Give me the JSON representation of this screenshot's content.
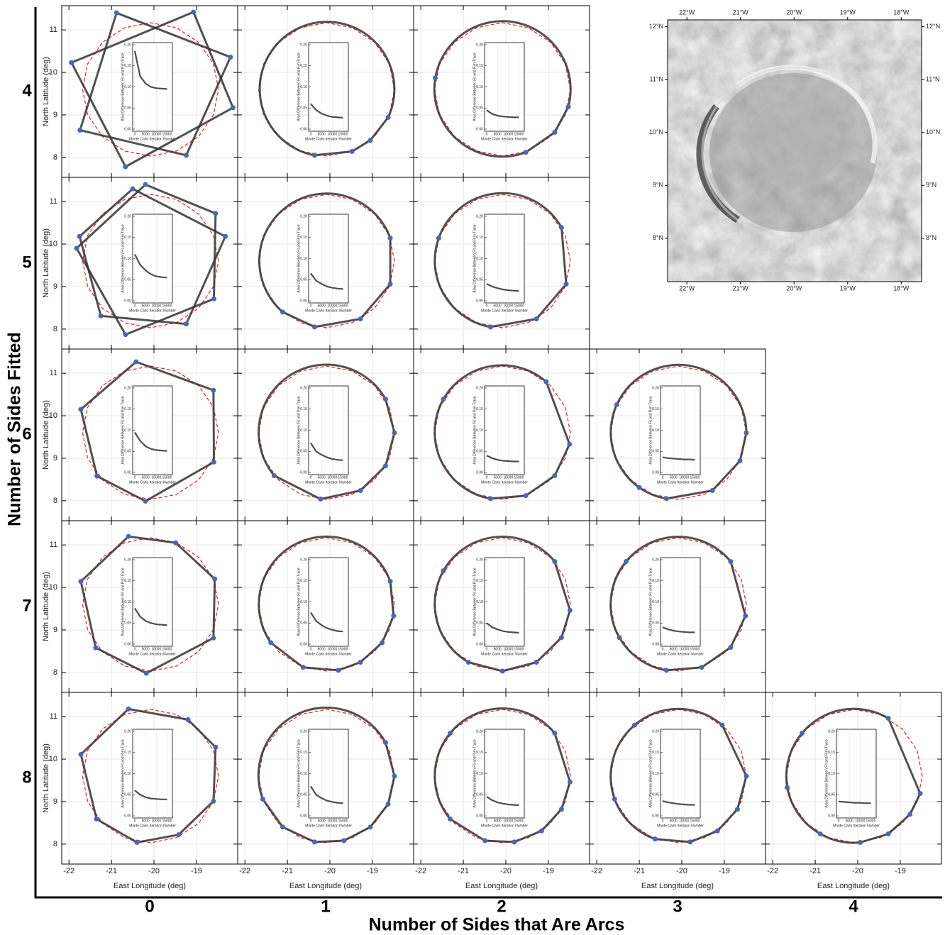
{
  "chart_data": {
    "type": "panel-grid",
    "row_title": "Number of Sides Fitted",
    "col_title": "Number of Sides that Are Arcs",
    "sides_fitted": [
      4,
      5,
      6,
      7,
      8
    ],
    "arc_counts": [
      0,
      1,
      2,
      3,
      4
    ],
    "xlabel": "East Longitude (deg)",
    "ylabel": "North Latitude (deg)",
    "xlim": [
      -22.17,
      -18.03
    ],
    "ylim": [
      7.53,
      11.57
    ],
    "xticks": [
      -22,
      -21,
      -20,
      -19
    ],
    "yticks": [
      8,
      9,
      10,
      11
    ],
    "grid": true,
    "rim_color": "#e02020",
    "fit_color": "#333333",
    "vertex_color": "#4a66b8",
    "rim_trace": [
      [
        -18.48,
        9.6
      ],
      [
        -18.6,
        10.2
      ],
      [
        -18.95,
        10.71
      ],
      [
        -19.47,
        11.05
      ],
      [
        -20.08,
        11.17
      ],
      [
        -20.69,
        11.05
      ],
      [
        -21.21,
        10.71
      ],
      [
        -21.56,
        10.2
      ],
      [
        -21.68,
        9.6
      ],
      [
        -21.56,
        9.0
      ],
      [
        -21.21,
        8.49
      ],
      [
        -20.69,
        8.15
      ],
      [
        -20.08,
        8.03
      ],
      [
        -19.47,
        8.15
      ],
      [
        -18.95,
        8.49
      ],
      [
        -18.6,
        9.0
      ]
    ],
    "inset": {
      "xlabel": "Monte Carlo Iteration Number",
      "ylabel": "Area Difference Between Fit and Rim Trace",
      "xlim": [
        -1000,
        17500
      ],
      "ylim": [
        -0.005,
        0.205
      ],
      "xticks": [
        0,
        5000,
        10000,
        15000
      ],
      "yticks": [
        {
          "value": 0,
          "label": "0.00"
        },
        {
          "value": 0.05,
          "label": "0.05"
        },
        {
          "value": 0.1,
          "label": "0.10"
        },
        {
          "value": 0.15,
          "label": "0.15"
        },
        {
          "value": 0.2,
          "label": "0.20"
        }
      ],
      "x": [
        0,
        2500,
        5000,
        7500,
        10000,
        12500,
        15000
      ],
      "color": "#222222"
    },
    "panels": [
      {
        "sides": 4,
        "arcs": 0,
        "fits": [
          [
            [
              -20.88,
              11.4
            ],
            [
              -18.2,
              10.36
            ],
            [
              -19.24,
              8.05
            ],
            [
              -21.74,
              8.64
            ]
          ],
          [
            [
              -19.07,
              11.42
            ],
            [
              -18.14,
              9.17
            ],
            [
              -20.67,
              7.78
            ],
            [
              -21.94,
              10.23
            ]
          ]
        ],
        "convergence": [
          0.185,
          0.125,
          0.108,
          0.1,
          0.097,
          0.096,
          0.095
        ]
      },
      {
        "sides": 4,
        "arcs": 1,
        "fits": [
          [
            [
              -18.63,
              8.94
            ],
            [
              -20.36,
              8.05
            ],
            [
              -19.48,
              8.14
            ],
            [
              -19.05,
              8.4
            ]
          ]
        ],
        "convergence": [
          0.06,
          0.045,
          0.037,
          0.032,
          0.029,
          0.028,
          0.027
        ]
      },
      {
        "sides": 4,
        "arcs": 2,
        "fits": [
          [
            [
              -18.53,
              9.19
            ],
            [
              -21.66,
              9.87
            ],
            [
              -19.53,
              8.12
            ],
            [
              -18.85,
              8.59
            ]
          ]
        ],
        "convergence": [
          0.045,
          0.036,
          0.032,
          0.03,
          0.029,
          0.028,
          0.028
        ]
      },
      {
        "sides": 5,
        "arcs": 0,
        "fits": [
          [
            [
              -20.5,
              11.3
            ],
            [
              -18.32,
              10.18
            ],
            [
              -19.24,
              8.12
            ],
            [
              -21.25,
              8.31
            ],
            [
              -21.75,
              10.18
            ]
          ],
          [
            [
              -20.2,
              11.4
            ],
            [
              -18.55,
              10.72
            ],
            [
              -18.59,
              8.71
            ],
            [
              -20.67,
              7.87
            ],
            [
              -21.82,
              9.9
            ]
          ]
        ],
        "convergence": [
          0.11,
          0.085,
          0.072,
          0.063,
          0.058,
          0.056,
          0.055
        ]
      },
      {
        "sides": 5,
        "arcs": 1,
        "fits": [
          [
            [
              -18.58,
              10.14
            ],
            [
              -21.11,
              8.4
            ],
            [
              -20.36,
              8.05
            ],
            [
              -19.28,
              8.24
            ],
            [
              -18.58,
              9.06
            ]
          ]
        ],
        "convergence": [
          0.065,
          0.048,
          0.04,
          0.034,
          0.031,
          0.029,
          0.028
        ]
      },
      {
        "sides": 5,
        "arcs": 2,
        "fits": [
          [
            [
              -18.69,
              10.39
            ],
            [
              -21.58,
              10.14
            ],
            [
              -20.36,
              8.05
            ],
            [
              -19.28,
              8.24
            ],
            [
              -18.58,
              9.06
            ]
          ]
        ],
        "convergence": [
          0.04,
          0.034,
          0.03,
          0.027,
          0.025,
          0.024,
          0.023
        ]
      },
      {
        "sides": 6,
        "arcs": 0,
        "fits": [
          [
            [
              -20.42,
              11.27
            ],
            [
              -18.6,
              10.6
            ],
            [
              -18.59,
              8.91
            ],
            [
              -20.2,
              7.99
            ],
            [
              -21.34,
              8.58
            ],
            [
              -21.72,
              10.15
            ]
          ]
        ],
        "convergence": [
          0.095,
          0.075,
          0.062,
          0.056,
          0.053,
          0.052,
          0.051
        ]
      },
      {
        "sides": 6,
        "arcs": 1,
        "fits": [
          [
            [
              -18.69,
              10.39
            ],
            [
              -21.31,
              8.59
            ],
            [
              -20.22,
              8.04
            ],
            [
              -19.28,
              8.24
            ],
            [
              -18.69,
              8.82
            ],
            [
              -18.48,
              9.6
            ]
          ]
        ],
        "convergence": [
          0.07,
          0.05,
          0.042,
          0.036,
          0.032,
          0.03,
          0.029
        ]
      },
      {
        "sides": 6,
        "arcs": 2,
        "fits": [
          [
            [
              -19.05,
              10.8
            ],
            [
              -21.47,
              10.39
            ],
            [
              -20.36,
              8.05
            ],
            [
              -19.53,
              8.12
            ],
            [
              -18.85,
              8.59
            ],
            [
              -18.5,
              9.33
            ]
          ]
        ],
        "convergence": [
          0.04,
          0.034,
          0.03,
          0.028,
          0.027,
          0.026,
          0.026
        ]
      },
      {
        "sides": 6,
        "arcs": 3,
        "fits": [
          [
            [
              -18.48,
              9.6
            ],
            [
              -21.53,
              10.26
            ],
            [
              -21.0,
              8.31
            ],
            [
              -20.36,
              8.05
            ],
            [
              -19.28,
              8.24
            ],
            [
              -18.63,
              8.94
            ]
          ]
        ],
        "convergence": [
          0.036,
          0.034,
          0.033,
          0.032,
          0.031,
          0.031,
          0.03
        ]
      },
      {
        "sides": 7,
        "arcs": 0,
        "fits": [
          [
            [
              -20.6,
              11.2
            ],
            [
              -19.49,
              11.05
            ],
            [
              -18.57,
              10.2
            ],
            [
              -18.6,
              8.81
            ],
            [
              -20.18,
              7.98
            ],
            [
              -21.37,
              8.58
            ],
            [
              -21.72,
              10.14
            ]
          ]
        ],
        "convergence": [
          0.085,
          0.065,
          0.055,
          0.05,
          0.047,
          0.046,
          0.045
        ]
      },
      {
        "sides": 7,
        "arcs": 1,
        "fits": [
          [
            [
              -18.58,
              10.14
            ],
            [
              -21.39,
              8.7
            ],
            [
              -20.63,
              8.12
            ],
            [
              -19.8,
              8.05
            ],
            [
              -19.28,
              8.24
            ],
            [
              -18.77,
              8.7
            ],
            [
              -18.5,
              9.33
            ]
          ]
        ],
        "convergence": [
          0.075,
          0.055,
          0.045,
          0.038,
          0.034,
          0.031,
          0.03
        ]
      },
      {
        "sides": 7,
        "arcs": 2,
        "fits": [
          [
            [
              -18.85,
              10.61
            ],
            [
              -21.47,
              10.39
            ],
            [
              -20.88,
              8.24
            ],
            [
              -20.08,
              8.03
            ],
            [
              -19.28,
              8.24
            ],
            [
              -18.69,
              8.82
            ],
            [
              -18.49,
              9.46
            ]
          ]
        ],
        "convergence": [
          0.05,
          0.04,
          0.035,
          0.031,
          0.029,
          0.028,
          0.027
        ]
      },
      {
        "sides": 7,
        "arcs": 3,
        "fits": [
          [
            [
              -18.85,
              10.61
            ],
            [
              -21.31,
              10.61
            ],
            [
              -21.47,
              8.82
            ],
            [
              -20.36,
              8.05
            ],
            [
              -19.53,
              8.12
            ],
            [
              -18.85,
              8.59
            ],
            [
              -18.5,
              9.33
            ]
          ]
        ],
        "convergence": [
          0.04,
          0.035,
          0.032,
          0.03,
          0.029,
          0.028,
          0.028
        ]
      },
      {
        "sides": 8,
        "arcs": 0,
        "fits": [
          [
            [
              -20.6,
              11.18
            ],
            [
              -19.2,
              10.93
            ],
            [
              -18.55,
              10.28
            ],
            [
              -18.6,
              9.01
            ],
            [
              -19.42,
              8.22
            ],
            [
              -20.4,
              8.04
            ],
            [
              -21.35,
              8.59
            ],
            [
              -21.72,
              10.11
            ]
          ]
        ],
        "convergence": [
          0.06,
          0.05,
          0.044,
          0.041,
          0.04,
          0.039,
          0.039
        ]
      },
      {
        "sides": 8,
        "arcs": 1,
        "fits": [
          [
            [
              -18.69,
              10.39
            ],
            [
              -21.58,
              9.06
            ],
            [
              -21.11,
              8.4
            ],
            [
              -20.36,
              8.05
            ],
            [
              -19.67,
              8.08
            ],
            [
              -19.05,
              8.4
            ],
            [
              -18.63,
              8.94
            ],
            [
              -18.48,
              9.6
            ]
          ]
        ],
        "convergence": [
          0.07,
          0.05,
          0.042,
          0.036,
          0.033,
          0.031,
          0.03
        ]
      },
      {
        "sides": 8,
        "arcs": 2,
        "fits": [
          [
            [
              -18.85,
              10.61
            ],
            [
              -21.31,
              10.61
            ],
            [
              -21.31,
              8.59
            ],
            [
              -20.49,
              8.08
            ],
            [
              -19.8,
              8.05
            ],
            [
              -19.16,
              8.31
            ],
            [
              -18.69,
              8.82
            ],
            [
              -18.49,
              9.46
            ]
          ]
        ],
        "convergence": [
          0.045,
          0.037,
          0.032,
          0.029,
          0.027,
          0.026,
          0.025
        ]
      },
      {
        "sides": 8,
        "arcs": 3,
        "fits": [
          [
            [
              -19.05,
              10.8
            ],
            [
              -21.11,
              10.8
            ],
            [
              -21.58,
              9.06
            ],
            [
              -20.63,
              8.12
            ],
            [
              -19.8,
              8.05
            ],
            [
              -19.16,
              8.31
            ],
            [
              -18.69,
              8.82
            ],
            [
              -18.48,
              9.6
            ]
          ]
        ],
        "convergence": [
          0.035,
          0.032,
          0.03,
          0.028,
          0.027,
          0.026,
          0.026
        ]
      },
      {
        "sides": 8,
        "arcs": 4,
        "fits": [
          [
            [
              -19.28,
              10.96
            ],
            [
              -21.31,
              10.61
            ],
            [
              -21.66,
              9.33
            ],
            [
              -20.88,
              8.24
            ],
            [
              -19.94,
              8.04
            ],
            [
              -19.28,
              8.24
            ],
            [
              -18.77,
              8.7
            ],
            [
              -18.53,
              9.19
            ]
          ]
        ],
        "convergence": [
          0.034,
          0.033,
          0.032,
          0.031,
          0.031,
          0.03,
          0.03
        ]
      }
    ],
    "map": {
      "xlim": [
        -22.36,
        -17.62
      ],
      "ylim": [
        7.18,
        12.13
      ],
      "xticks": [
        {
          "value": -22,
          "label": "22°W"
        },
        {
          "value": -21,
          "label": "21°W"
        },
        {
          "value": -20,
          "label": "20°W"
        },
        {
          "value": -19,
          "label": "19°W"
        },
        {
          "value": -18,
          "label": "18°W"
        }
      ],
      "yticks": [
        {
          "value": 8,
          "label": "8°N"
        },
        {
          "value": 9,
          "label": "9°N"
        },
        {
          "value": 10,
          "label": "10°N"
        },
        {
          "value": 11,
          "label": "11°N"
        },
        {
          "value": 12,
          "label": "12°N"
        }
      ]
    }
  }
}
